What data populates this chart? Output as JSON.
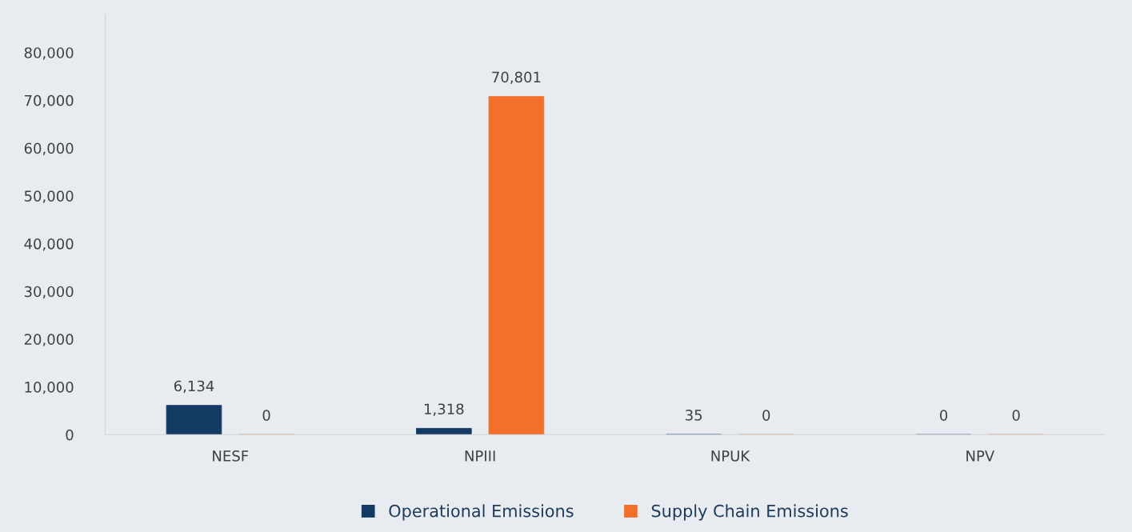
{
  "chart_data": {
    "type": "bar",
    "categories": [
      "NESF",
      "NPIII",
      "NPUK",
      "NPV"
    ],
    "series": [
      {
        "name": "Operational Emissions",
        "color": "#133a63",
        "values": [
          6134,
          1318,
          35,
          0
        ],
        "value_labels": [
          "6,134",
          "1,318",
          "35",
          "0"
        ]
      },
      {
        "name": "Supply Chain Emissions",
        "color": "#f26f2c",
        "values": [
          0,
          70801,
          0,
          0
        ],
        "value_labels": [
          "0",
          "70,801",
          "0",
          "0"
        ]
      }
    ],
    "ylim": [
      0,
      88000
    ],
    "yticks": [
      0,
      {
        "value": 10000,
        "label": "10,000"
      },
      {
        "value": 20000,
        "label": "20,000"
      },
      {
        "value": 30000,
        "label": "30,000"
      },
      {
        "value": 40000,
        "label": "40,000"
      },
      {
        "value": 50000,
        "label": "50,000"
      },
      {
        "value": 60000,
        "label": "60,000"
      },
      {
        "value": 70000,
        "label": "70,000"
      },
      {
        "value": 80000,
        "label": "80,000"
      }
    ],
    "grid": false,
    "legend": "bottom"
  }
}
